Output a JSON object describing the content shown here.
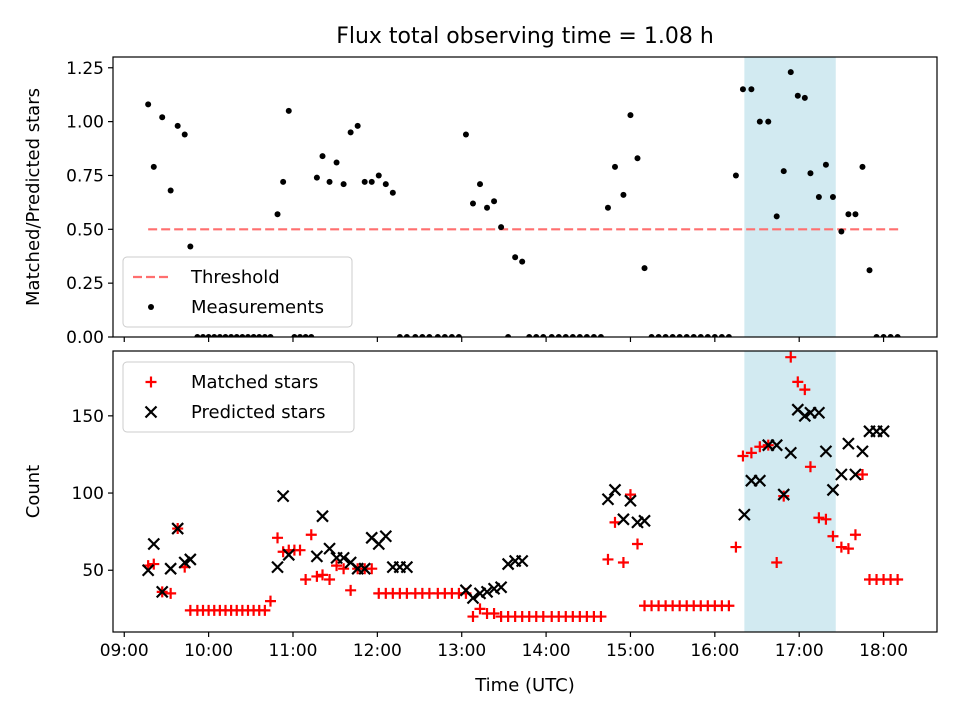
{
  "title": "Flux total observing time = 1.08 h",
  "colors": {
    "threshold": "#ff6f6f",
    "measurement": "#000000",
    "matched": "#ff0000",
    "predicted": "#000000",
    "highlight": "#add8e6"
  },
  "chart_data": [
    {
      "type": "scatter",
      "ylabel": "Matched/Predicted stars",
      "ylim": [
        0,
        1.3
      ],
      "yticks": [
        0.0,
        0.25,
        0.5,
        0.75,
        1.0,
        1.25
      ],
      "ytick_labels": [
        "0.00",
        "0.25",
        "0.50",
        "0.75",
        "1.00",
        "1.25"
      ],
      "xlim": [
        "08:52",
        "18:38"
      ],
      "highlight_span": [
        "16:21",
        "17:26"
      ],
      "threshold": {
        "name": "Threshold",
        "y": 0.5,
        "x_start": "09:17",
        "x_end": "18:12"
      },
      "legend": {
        "position": "lower-left",
        "entries": [
          "Threshold",
          "Measurements"
        ]
      },
      "series": [
        {
          "name": "Measurements",
          "x": [
            "09:17",
            "09:21",
            "09:27",
            "09:33",
            "09:38",
            "09:43",
            "09:47",
            "09:52",
            "09:56",
            "10:00",
            "10:04",
            "10:08",
            "10:12",
            "10:16",
            "10:20",
            "10:24",
            "10:28",
            "10:32",
            "10:36",
            "10:40",
            "10:44",
            "10:49",
            "10:53",
            "10:57",
            "11:01",
            "11:05",
            "11:09",
            "11:13",
            "11:17",
            "11:21",
            "11:26",
            "11:31",
            "11:36",
            "11:41",
            "11:46",
            "11:51",
            "11:56",
            "12:01",
            "12:06",
            "12:11",
            "12:16",
            "12:21",
            "12:27",
            "12:32",
            "12:37",
            "12:43",
            "12:48",
            "12:53",
            "12:58",
            "13:03",
            "13:08",
            "13:13",
            "13:18",
            "13:23",
            "13:28",
            "13:33",
            "13:38",
            "13:43",
            "13:48",
            "13:53",
            "13:58",
            "14:04",
            "14:09",
            "14:14",
            "14:19",
            "14:24",
            "14:29",
            "14:34",
            "14:39",
            "14:44",
            "14:49",
            "14:55",
            "15:00",
            "15:05",
            "15:10",
            "15:15",
            "15:20",
            "15:25",
            "15:30",
            "15:35",
            "15:40",
            "15:45",
            "15:50",
            "15:55",
            "16:00",
            "16:05",
            "16:10",
            "16:15",
            "16:20",
            "16:26",
            "16:32",
            "16:38",
            "16:44",
            "16:49",
            "16:54",
            "16:59",
            "17:04",
            "17:08",
            "17:14",
            "17:19",
            "17:24",
            "17:30",
            "17:35",
            "17:40",
            "17:45",
            "17:50",
            "17:55",
            "18:00",
            "18:05",
            "18:10"
          ],
          "y": [
            1.08,
            0.79,
            1.02,
            0.68,
            0.98,
            0.94,
            0.42,
            0.0,
            0.0,
            0.0,
            0.0,
            0.0,
            0.0,
            0.0,
            0.0,
            0.0,
            0.0,
            0.0,
            0.0,
            0.0,
            0.0,
            0.57,
            0.72,
            1.05,
            0.0,
            0.0,
            0.0,
            0.0,
            0.74,
            0.84,
            0.72,
            0.81,
            0.71,
            0.95,
            0.98,
            0.72,
            0.72,
            0.75,
            0.71,
            0.67,
            0.0,
            0.0,
            0.0,
            0.0,
            0.0,
            0.0,
            0.0,
            0.0,
            0.0,
            0.94,
            0.62,
            0.71,
            0.6,
            0.63,
            0.51,
            0.0,
            0.37,
            0.35,
            0.0,
            0.0,
            0.0,
            0.0,
            0.0,
            0.0,
            0.0,
            0.0,
            0.0,
            0.0,
            0.0,
            0.6,
            0.79,
            0.66,
            1.03,
            0.83,
            0.32,
            0.0,
            0.0,
            0.0,
            0.0,
            0.0,
            0.0,
            0.0,
            0.0,
            0.0,
            0.0,
            0.0,
            0.0,
            0.75,
            1.15,
            1.15,
            1.0,
            1.0,
            0.56,
            0.77,
            1.23,
            1.12,
            1.11,
            0.76,
            0.65,
            0.8,
            0.65,
            0.49,
            0.57,
            0.57,
            0.79,
            0.31,
            0.0,
            0.0,
            0.0,
            0.0
          ]
        }
      ]
    },
    {
      "type": "scatter",
      "xlabel": "Time (UTC)",
      "ylabel": "Count",
      "ylim": [
        10,
        192
      ],
      "yticks": [
        50,
        100,
        150
      ],
      "ytick_labels": [
        "50",
        "100",
        "150"
      ],
      "xlim": [
        "08:52",
        "18:38"
      ],
      "xtick_labels": [
        "09:00",
        "10:00",
        "11:00",
        "12:00",
        "13:00",
        "14:00",
        "15:00",
        "16:00",
        "17:00",
        "18:00"
      ],
      "highlight_span": [
        "16:21",
        "17:26"
      ],
      "legend": {
        "position": "upper-left",
        "entries": [
          "Matched stars",
          "Predicted stars"
        ]
      },
      "series": [
        {
          "name": "Matched stars",
          "x": [
            "09:17",
            "09:21",
            "09:27",
            "09:33",
            "09:38",
            "09:43",
            "09:47",
            "09:52",
            "09:56",
            "10:00",
            "10:04",
            "10:08",
            "10:12",
            "10:16",
            "10:20",
            "10:24",
            "10:28",
            "10:32",
            "10:36",
            "10:40",
            "10:44",
            "10:49",
            "10:53",
            "10:57",
            "11:01",
            "11:05",
            "11:09",
            "11:13",
            "11:17",
            "11:21",
            "11:26",
            "11:31",
            "11:36",
            "11:41",
            "11:46",
            "11:51",
            "11:56",
            "12:01",
            "12:06",
            "12:11",
            "12:16",
            "12:21",
            "12:27",
            "12:32",
            "12:37",
            "12:43",
            "12:48",
            "12:53",
            "12:58",
            "13:03",
            "13:08",
            "13:13",
            "13:18",
            "13:23",
            "13:28",
            "13:33",
            "13:38",
            "13:43",
            "13:48",
            "13:53",
            "13:58",
            "14:04",
            "14:09",
            "14:14",
            "14:19",
            "14:24",
            "14:29",
            "14:34",
            "14:39",
            "14:44",
            "14:49",
            "14:55",
            "15:00",
            "15:05",
            "15:10",
            "15:15",
            "15:20",
            "15:25",
            "15:30",
            "15:35",
            "15:40",
            "15:45",
            "15:50",
            "15:55",
            "16:00",
            "16:05",
            "16:10",
            "16:15",
            "16:20",
            "16:26",
            "16:32",
            "16:38",
            "16:44",
            "16:49",
            "16:54",
            "16:59",
            "17:04",
            "17:08",
            "17:14",
            "17:19",
            "17:24",
            "17:30",
            "17:35",
            "17:40",
            "17:45",
            "17:50",
            "17:55",
            "18:00",
            "18:05",
            "18:10"
          ],
          "y": [
            53,
            54,
            36,
            35,
            77,
            52,
            24,
            24,
            24,
            24,
            24,
            24,
            24,
            24,
            24,
            24,
            24,
            24,
            24,
            24,
            30,
            71,
            62,
            63,
            63,
            63,
            44,
            73,
            46,
            47,
            44,
            53,
            51,
            37,
            51,
            51,
            51,
            35,
            35,
            35,
            35,
            35,
            35,
            35,
            35,
            35,
            35,
            35,
            35,
            35,
            20,
            25,
            22,
            22,
            20,
            20,
            20,
            20,
            20,
            20,
            20,
            20,
            20,
            20,
            20,
            20,
            20,
            20,
            20,
            57,
            81,
            55,
            99,
            67,
            27,
            27,
            27,
            27,
            27,
            27,
            27,
            27,
            27,
            27,
            27,
            27,
            27,
            65,
            124,
            126,
            130,
            131,
            55,
            98,
            188,
            172,
            167,
            117,
            84,
            83,
            72,
            65,
            64,
            73,
            112,
            44,
            44,
            44,
            44,
            44
          ]
        },
        {
          "name": "Predicted stars",
          "x": [
            "09:17",
            "09:21",
            "09:27",
            "09:33",
            "09:38",
            "09:43",
            "09:47",
            "10:49",
            "10:53",
            "10:57",
            "11:17",
            "11:21",
            "11:26",
            "11:31",
            "11:36",
            "11:41",
            "11:46",
            "11:51",
            "11:56",
            "12:01",
            "12:06",
            "12:11",
            "12:16",
            "12:21",
            "13:03",
            "13:08",
            "13:13",
            "13:18",
            "13:23",
            "13:28",
            "13:33",
            "13:38",
            "13:43",
            "14:44",
            "14:49",
            "14:55",
            "15:00",
            "15:05",
            "15:10",
            "16:21",
            "16:26",
            "16:32",
            "16:38",
            "16:44",
            "16:49",
            "16:54",
            "16:59",
            "17:04",
            "17:08",
            "17:14",
            "17:19",
            "17:24",
            "17:30",
            "17:35",
            "17:40",
            "17:45",
            "17:50",
            "17:55",
            "18:00"
          ],
          "y": [
            50,
            67,
            36,
            51,
            77,
            55,
            57,
            52,
            98,
            60,
            59,
            85,
            64,
            58,
            58,
            55,
            51,
            51,
            71,
            67,
            72,
            52,
            52,
            52,
            37,
            32,
            35,
            36,
            38,
            39,
            54,
            56,
            56,
            96,
            102,
            83,
            95,
            81,
            82,
            86,
            108,
            108,
            131,
            131,
            99,
            126,
            154,
            150,
            152,
            152,
            127,
            102,
            112,
            132,
            112,
            127,
            140,
            140,
            140
          ]
        }
      ]
    }
  ]
}
